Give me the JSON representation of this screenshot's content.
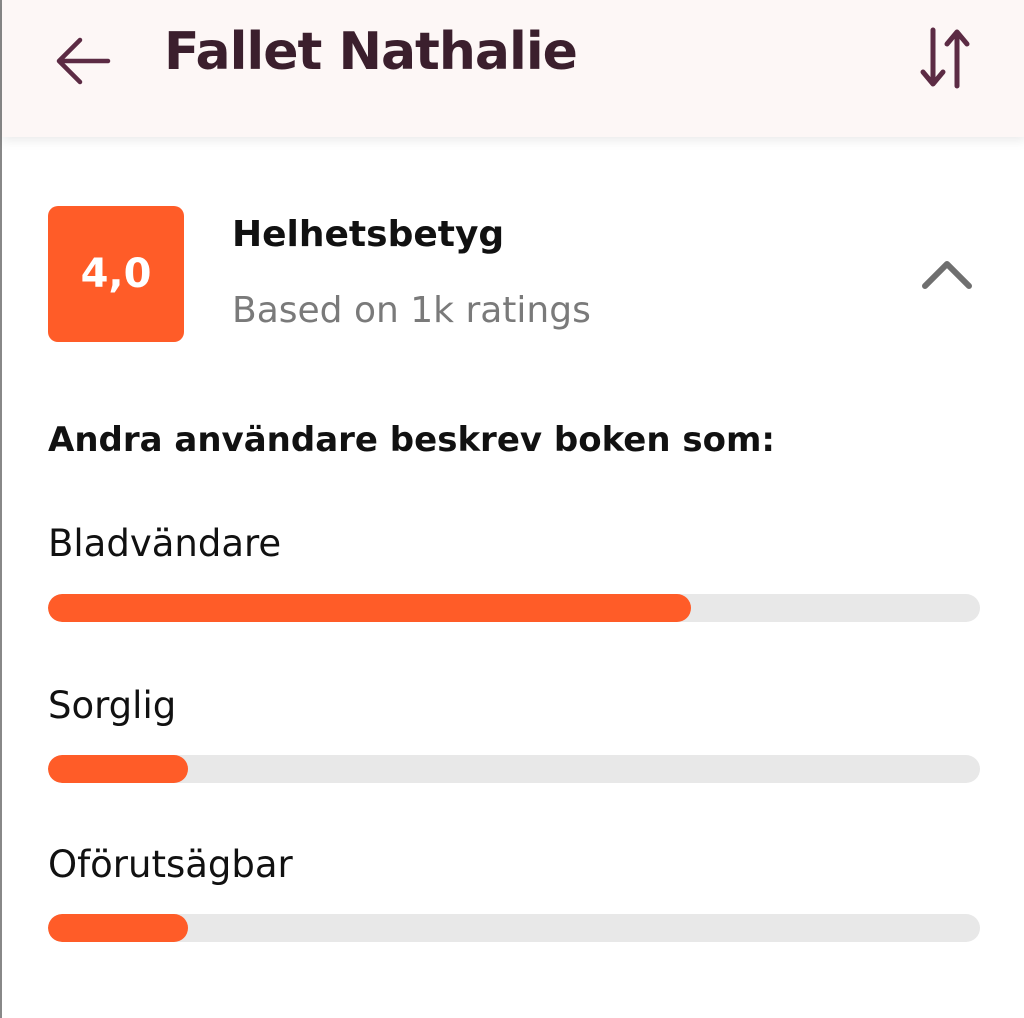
{
  "header": {
    "title": "Fallet Nathalie",
    "back_icon": "arrow-left-icon",
    "sort_icon": "sort-arrows-icon"
  },
  "rating": {
    "score": "4,0",
    "title": "Helhetsbetyg",
    "subtitle": "Based on 1k ratings",
    "toggle_icon": "chevron-up-icon"
  },
  "description_heading": "Andra användare beskrev boken som:",
  "tags": [
    {
      "label": "Bladvändare",
      "fraction": 0.69
    },
    {
      "label": "Sorglig",
      "fraction": 0.15
    },
    {
      "label": "Oförutsägbar",
      "fraction": 0.15
    }
  ],
  "colors": {
    "accent": "#ff5c28",
    "header_text": "#3b1f2d",
    "track": "#e8e8e8"
  }
}
